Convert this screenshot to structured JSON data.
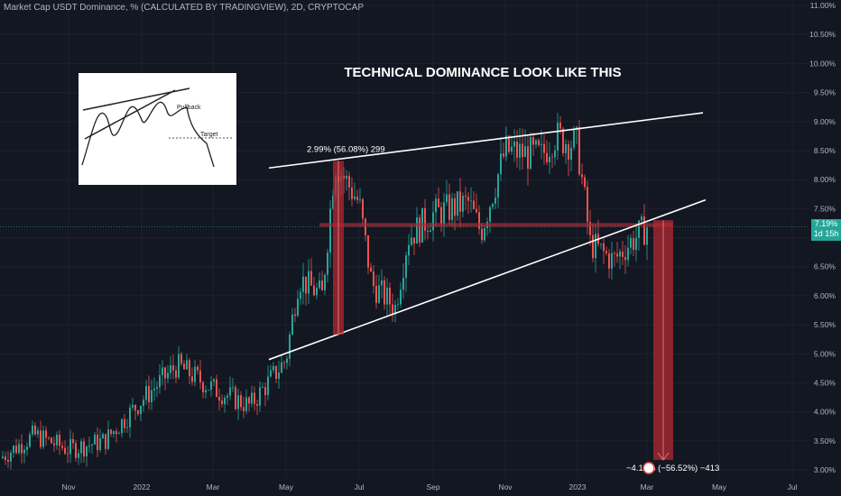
{
  "header": {
    "symbol_line": "Market Cap USDT Dominance, % (CALCULATED BY TRADINGVIEW), 2D, CRYPTOCAP"
  },
  "colors": {
    "background": "#131722",
    "up": "#26a69a",
    "down": "#ef5350",
    "trendline": "#ffffff",
    "measure": "#b22833"
  },
  "current_price": {
    "value": "7.19%",
    "countdown": "1d 15h"
  },
  "inset": {
    "pullback_label": "Pullback",
    "target_label": "Target"
  },
  "chart_data": {
    "type": "candlestick",
    "title": "TECHNICAL DOMINANCE LOOK LIKE THIS",
    "y_axis": {
      "unit": "%",
      "min": 3.0,
      "max": 11.0,
      "ticks": [
        "3.00%",
        "3.50%",
        "4.00%",
        "4.50%",
        "5.00%",
        "5.50%",
        "6.00%",
        "6.50%",
        "7.00%",
        "7.50%",
        "8.00%",
        "8.50%",
        "9.00%",
        "9.50%",
        "10.00%",
        "10.50%",
        "11.00%"
      ]
    },
    "x_axis": {
      "ticks": [
        "Nov",
        "2022",
        "Mar",
        "May",
        "Jul",
        "Sep",
        "Nov",
        "2023",
        "Mar",
        "May",
        "Jul"
      ]
    },
    "price_path": [
      [
        "Sep-21",
        3.2
      ],
      [
        "Oct-21",
        3.6
      ],
      [
        "Nov-21",
        3.35
      ],
      [
        "Dec-21",
        3.5
      ],
      [
        "2022",
        4.2
      ],
      [
        "Feb-22",
        4.8
      ],
      [
        "Mar-22",
        4.4
      ],
      [
        "Apr-22",
        4.1
      ],
      [
        "May-22",
        4.9
      ],
      [
        "May-22",
        6.3
      ],
      [
        "Jun-22",
        6.0
      ],
      [
        "Jun-22",
        8.3
      ],
      [
        "Jul-22",
        7.6
      ],
      [
        "Jul-22",
        6.2
      ],
      [
        "Aug-22",
        5.8
      ],
      [
        "Aug-22",
        7.0
      ],
      [
        "Sep-22",
        7.4
      ],
      [
        "Oct-22",
        7.6
      ],
      [
        "Oct-22",
        7.1
      ],
      [
        "Nov-22",
        8.5
      ],
      [
        "Dec-22",
        8.4
      ],
      [
        "Dec-22",
        8.75
      ],
      [
        "2023",
        8.6
      ],
      [
        "2023",
        6.9
      ],
      [
        "Feb-23",
        6.6
      ],
      [
        "Feb-23",
        6.85
      ],
      [
        "Mar-23",
        7.19
      ]
    ],
    "trendlines": [
      {
        "name": "upper",
        "from": [
          "Mar-22",
          8.2
        ],
        "to": [
          "Jul-23",
          9.15
        ]
      },
      {
        "name": "lower",
        "from": [
          "Mar-22",
          4.9
        ],
        "to": [
          "Jul-23",
          7.65
        ]
      }
    ],
    "horizontal_level": 7.22,
    "measures": [
      {
        "label": "2.99% (56.08%) 299",
        "from": 5.33,
        "to": 8.32
      },
      {
        "label": "−4.13% (−56.52%) −413",
        "from": 7.3,
        "to": 3.17
      }
    ]
  }
}
